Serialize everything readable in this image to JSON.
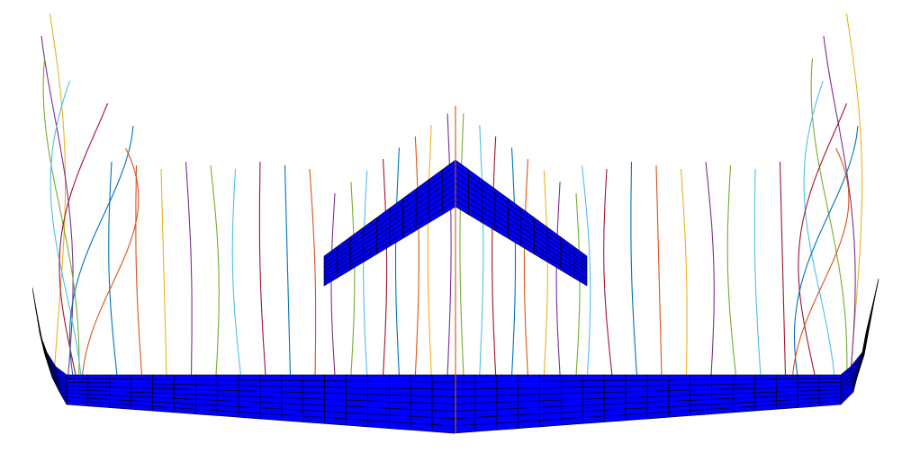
{
  "colors": {
    "background": "#ffffff",
    "panel_fill": "#0000ff",
    "panel_edge": "#000000",
    "line_palette": [
      "#0072bd",
      "#d95319",
      "#edb120",
      "#7e2f8e",
      "#77ac30",
      "#4dbeee",
      "#a2142f"
    ]
  },
  "scene": {
    "aft_surface": {
      "chord_rows": 8,
      "span_panels": 40
    },
    "fore_surface": {
      "chord_rows": 8,
      "span_panels": 20
    },
    "streamlines": {
      "aft_count": 33,
      "fore_count": 16
    }
  }
}
